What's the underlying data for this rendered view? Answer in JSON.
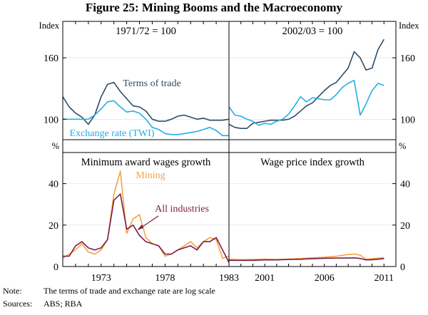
{
  "title": "Figure 25: Mining Booms and the Macroeconomy",
  "units": {
    "index": "Index",
    "percent": "%"
  },
  "colors": {
    "dark_blue": "#2f4d66",
    "light_blue": "#22aee6",
    "orange": "#f5a142",
    "maroon": "#7a1f47",
    "axis": "#000000",
    "grid": "#dddddd"
  },
  "footer": {
    "note_label": "Note:",
    "note_text": "The terms of trade and exchange rate are log scale",
    "sources_label": "Sources:",
    "sources_text": "ABS; RBA"
  },
  "chart_data": [
    {
      "id": "top-left",
      "type": "line",
      "subtitle": "1971/72 = 100",
      "ylabel": "Index",
      "ylim": [
        80,
        190
      ],
      "yticks": [
        100,
        160
      ],
      "xlim": [
        1970,
        1983
      ],
      "series": [
        {
          "name": "Terms of trade",
          "label": "Terms of trade",
          "color": "#2f4d66",
          "x": [
            1970,
            1970.5,
            1971,
            1971.5,
            1972,
            1972.5,
            1973,
            1973.5,
            1974,
            1974.5,
            1975,
            1975.5,
            1976,
            1976.5,
            1977,
            1977.5,
            1978,
            1978.5,
            1979,
            1979.5,
            1980,
            1980.5,
            1981,
            1981.5,
            1982,
            1982.5,
            1983
          ],
          "y": [
            122,
            112,
            106,
            102,
            95,
            104,
            122,
            134,
            136,
            127,
            120,
            113,
            112,
            108,
            100,
            98,
            98,
            100,
            103,
            104,
            102,
            100,
            101,
            99,
            99,
            99,
            100
          ]
        },
        {
          "name": "Exchange rate (TWI)",
          "label": "Exchange rate (TWI)",
          "color": "#22aee6",
          "x": [
            1970,
            1970.5,
            1971,
            1971.5,
            1972,
            1972.5,
            1973,
            1973.5,
            1974,
            1974.5,
            1975,
            1975.5,
            1976,
            1976.5,
            1977,
            1977.5,
            1978,
            1978.5,
            1979,
            1979.5,
            1980,
            1980.5,
            1981,
            1981.5,
            1982,
            1982.5,
            1983
          ],
          "y": [
            100,
            100,
            100,
            100,
            100,
            104,
            110,
            117,
            118,
            112,
            107,
            108,
            106,
            100,
            92,
            90,
            86,
            85,
            85,
            86,
            87,
            88,
            90,
            92,
            89,
            84,
            84
          ]
        }
      ]
    },
    {
      "id": "top-right",
      "type": "line",
      "subtitle": "2002/03 = 100",
      "ylabel": "Index",
      "ylim": [
        80,
        190
      ],
      "yticks": [
        100,
        160
      ],
      "xlim": [
        1998,
        2012
      ],
      "series": [
        {
          "name": "Terms of trade",
          "color": "#2f4d66",
          "x": [
            1998,
            1998.5,
            1999,
            1999.5,
            2000,
            2000.5,
            2001,
            2001.5,
            2002,
            2002.5,
            2003,
            2003.5,
            2004,
            2004.5,
            2005,
            2005.5,
            2006,
            2006.5,
            2007,
            2007.5,
            2008,
            2008.5,
            2009,
            2009.5,
            2010,
            2010.5,
            2011
          ],
          "y": [
            95,
            92,
            91,
            91,
            96,
            97,
            98,
            99,
            99,
            99,
            100,
            103,
            108,
            113,
            116,
            122,
            128,
            133,
            136,
            143,
            150,
            166,
            160,
            148,
            150,
            168,
            178
          ]
        },
        {
          "name": "Exchange rate (TWI)",
          "color": "#22aee6",
          "x": [
            1998,
            1998.5,
            1999,
            1999.5,
            2000,
            2000.5,
            2001,
            2001.5,
            2002,
            2002.5,
            2003,
            2003.5,
            2004,
            2004.5,
            2005,
            2005.5,
            2006,
            2006.5,
            2007,
            2007.5,
            2008,
            2008.5,
            2009,
            2009.5,
            2010,
            2010.5,
            2011
          ],
          "y": [
            112,
            104,
            103,
            100,
            98,
            94,
            96,
            95,
            98,
            100,
            105,
            113,
            122,
            117,
            121,
            120,
            119,
            119,
            124,
            131,
            135,
            138,
            104,
            115,
            128,
            135,
            133
          ]
        }
      ]
    },
    {
      "id": "bottom-left",
      "type": "line",
      "subtitle": "Minimum award wages growth",
      "ylabel": "%",
      "ylim": [
        0,
        55
      ],
      "yticks": [
        0,
        20,
        40
      ],
      "xlim": [
        1970,
        1983
      ],
      "xticks": [
        1973,
        1978,
        1983
      ],
      "xtick_labels": [
        "1973",
        "1978",
        "1983"
      ],
      "series": [
        {
          "name": "Mining",
          "label": "Mining",
          "color": "#f5a142",
          "x": [
            1970,
            1970.5,
            1971,
            1971.5,
            1972,
            1972.5,
            1973,
            1973.5,
            1974,
            1974.5,
            1975,
            1975.5,
            1976,
            1976.5,
            1977,
            1977.5,
            1978,
            1978.5,
            1979,
            1979.5,
            1980,
            1980.5,
            1981,
            1981.5,
            1982,
            1982.5,
            1983
          ],
          "y": [
            4,
            6,
            8,
            11,
            7,
            6,
            8,
            13,
            35,
            46,
            16,
            23,
            25,
            14,
            11,
            10,
            5,
            6,
            8,
            10,
            12,
            9,
            12,
            14,
            13,
            4,
            5
          ]
        },
        {
          "name": "All industries",
          "label": "All industries",
          "color": "#7a1f47",
          "x": [
            1970,
            1970.5,
            1971,
            1971.5,
            1972,
            1972.5,
            1973,
            1973.5,
            1974,
            1974.5,
            1975,
            1975.5,
            1976,
            1976.5,
            1977,
            1977.5,
            1978,
            1978.5,
            1979,
            1979.5,
            1980,
            1980.5,
            1981,
            1981.5,
            1982,
            1982.5,
            1983
          ],
          "y": [
            5,
            5,
            10,
            12,
            9,
            8,
            9,
            13,
            32,
            35,
            18,
            20,
            15,
            12,
            11,
            10,
            6,
            6,
            8,
            9,
            10,
            8,
            12,
            12,
            14,
            8,
            2
          ]
        }
      ]
    },
    {
      "id": "bottom-right",
      "type": "line",
      "subtitle": "Wage price index growth",
      "ylabel": "%",
      "ylim": [
        0,
        55
      ],
      "yticks": [
        0,
        20,
        40
      ],
      "xlim": [
        1998,
        2012
      ],
      "xticks": [
        2001,
        2006,
        2011
      ],
      "xtick_labels": [
        "2001",
        "2006",
        "2011"
      ],
      "series": [
        {
          "name": "Mining",
          "color": "#f5a142",
          "x": [
            1998,
            1999,
            2000,
            2001,
            2002,
            2003,
            2004,
            2005,
            2006,
            2007,
            2008,
            2008.5,
            2009,
            2009.5,
            2010,
            2011
          ],
          "y": [
            3.5,
            3.3,
            3.4,
            3.6,
            3.4,
            3.6,
            3.9,
            4.2,
            4.5,
            5.0,
            5.8,
            6.0,
            5.5,
            3.5,
            3.8,
            4.3
          ]
        },
        {
          "name": "All industries",
          "color": "#7a1f47",
          "x": [
            1998,
            1999,
            2000,
            2001,
            2002,
            2003,
            2004,
            2005,
            2006,
            2007,
            2008,
            2008.5,
            2009,
            2009.5,
            2010,
            2011
          ],
          "y": [
            3.0,
            3.0,
            3.0,
            3.2,
            3.2,
            3.4,
            3.5,
            3.8,
            4.0,
            4.1,
            4.1,
            4.2,
            3.9,
            3.2,
            3.3,
            3.8
          ]
        }
      ]
    }
  ]
}
